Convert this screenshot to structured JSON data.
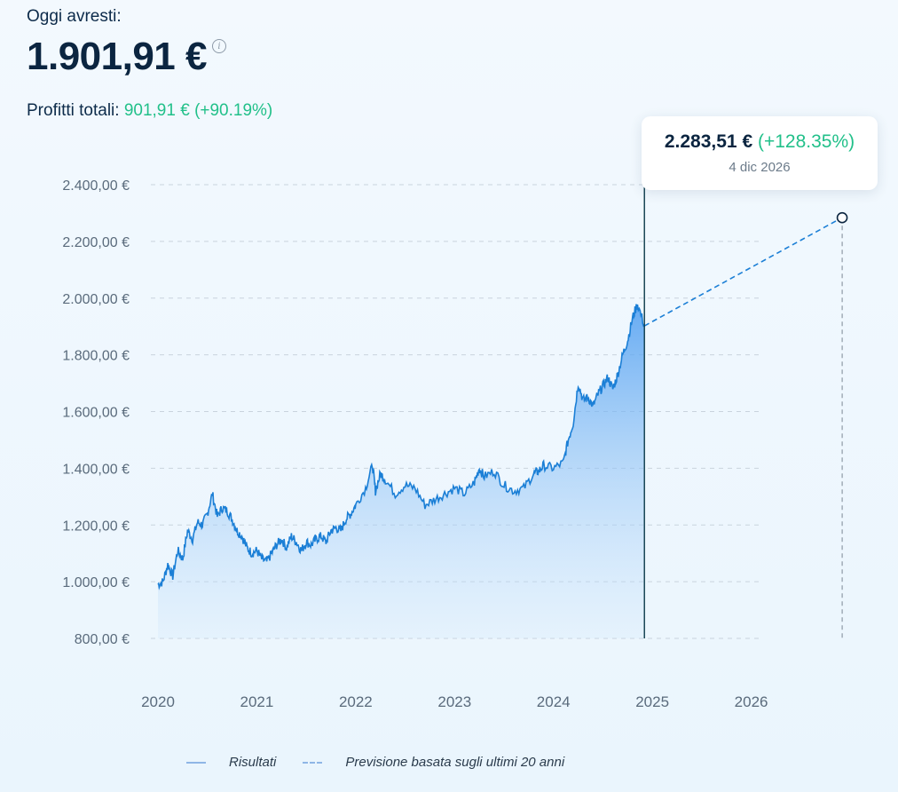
{
  "header": {
    "label": "Oggi avresti:",
    "amount": "1.901,91 €",
    "info_icon": "info-icon",
    "profit_label": "Profitti totali:",
    "profit_value": "901,91 € (+90.19%)"
  },
  "tooltip": {
    "value": "2.283,51 €",
    "change": "(+128.35%)",
    "date": "4 dic 2026"
  },
  "legend": {
    "results": "Risultati",
    "forecast": "Previsione basata sugli ultimi 20 anni"
  },
  "colors": {
    "line": "#1b7fd6",
    "forecast": "#1b7fd6",
    "positive": "#22c08a",
    "marker_line": "#0b3a4a"
  },
  "chart_data": {
    "type": "area",
    "y_ticks": [
      "800,00 €",
      "1.000,00 €",
      "1.200,00 €",
      "1.400,00 €",
      "1.600,00 €",
      "1.800,00 €",
      "2.000,00 €",
      "2.200,00 €",
      "2.400,00 €"
    ],
    "y_tick_values": [
      800,
      1000,
      1200,
      1400,
      1600,
      1800,
      2000,
      2200,
      2400
    ],
    "x_ticks": [
      "2020",
      "2021",
      "2022",
      "2023",
      "2024",
      "2025",
      "2026"
    ],
    "x_tick_values": [
      2020,
      2021,
      2022,
      2023,
      2024,
      2025,
      2026
    ],
    "ylim": [
      800,
      2400
    ],
    "xlim": [
      2020,
      2027
    ],
    "grid": true,
    "legend_position": "bottom",
    "series": [
      {
        "name": "Risultati",
        "style": "solid-area",
        "x": [
          2020.0,
          2020.05,
          2020.1,
          2020.15,
          2020.2,
          2020.25,
          2020.3,
          2020.35,
          2020.4,
          2020.45,
          2020.5,
          2020.55,
          2020.6,
          2020.65,
          2020.7,
          2020.75,
          2020.8,
          2020.85,
          2020.9,
          2020.95,
          2021.0,
          2021.05,
          2021.1,
          2021.15,
          2021.2,
          2021.25,
          2021.3,
          2021.35,
          2021.4,
          2021.45,
          2021.5,
          2021.55,
          2021.6,
          2021.65,
          2021.7,
          2021.75,
          2021.8,
          2021.85,
          2021.9,
          2021.95,
          2022.0,
          2022.1,
          2022.17,
          2022.2,
          2022.25,
          2022.3,
          2022.4,
          2022.5,
          2022.6,
          2022.7,
          2022.8,
          2022.9,
          2023.0,
          2023.1,
          2023.2,
          2023.25,
          2023.3,
          2023.4,
          2023.5,
          2023.6,
          2023.7,
          2023.8,
          2023.85,
          2023.9,
          2024.0,
          2024.1,
          2024.15,
          2024.2,
          2024.25,
          2024.3,
          2024.35,
          2024.4,
          2024.45,
          2024.5,
          2024.55,
          2024.6,
          2024.65,
          2024.7,
          2024.75,
          2024.8,
          2024.85,
          2024.92
        ],
        "y": [
          990,
          1000,
          1060,
          1020,
          1110,
          1080,
          1180,
          1150,
          1210,
          1200,
          1240,
          1310,
          1230,
          1260,
          1250,
          1220,
          1180,
          1160,
          1120,
          1100,
          1110,
          1080,
          1070,
          1100,
          1130,
          1150,
          1120,
          1160,
          1140,
          1110,
          1140,
          1130,
          1150,
          1160,
          1140,
          1180,
          1190,
          1180,
          1220,
          1240,
          1270,
          1330,
          1410,
          1320,
          1380,
          1360,
          1310,
          1340,
          1330,
          1270,
          1290,
          1310,
          1330,
          1310,
          1350,
          1400,
          1370,
          1390,
          1340,
          1320,
          1330,
          1380,
          1390,
          1410,
          1400,
          1420,
          1500,
          1560,
          1700,
          1640,
          1650,
          1620,
          1660,
          1690,
          1720,
          1680,
          1730,
          1800,
          1850,
          1930,
          1980,
          1902
        ]
      },
      {
        "name": "Previsione basata sugli ultimi 20 anni",
        "style": "dashed",
        "x": [
          2024.92,
          2026.92
        ],
        "y": [
          1902,
          2284
        ]
      }
    ],
    "annotations": [
      {
        "x": 2026.92,
        "y": 2283.51,
        "label": "2.283,51 € (+128.35%)",
        "date": "4 dic 2026"
      }
    ]
  }
}
